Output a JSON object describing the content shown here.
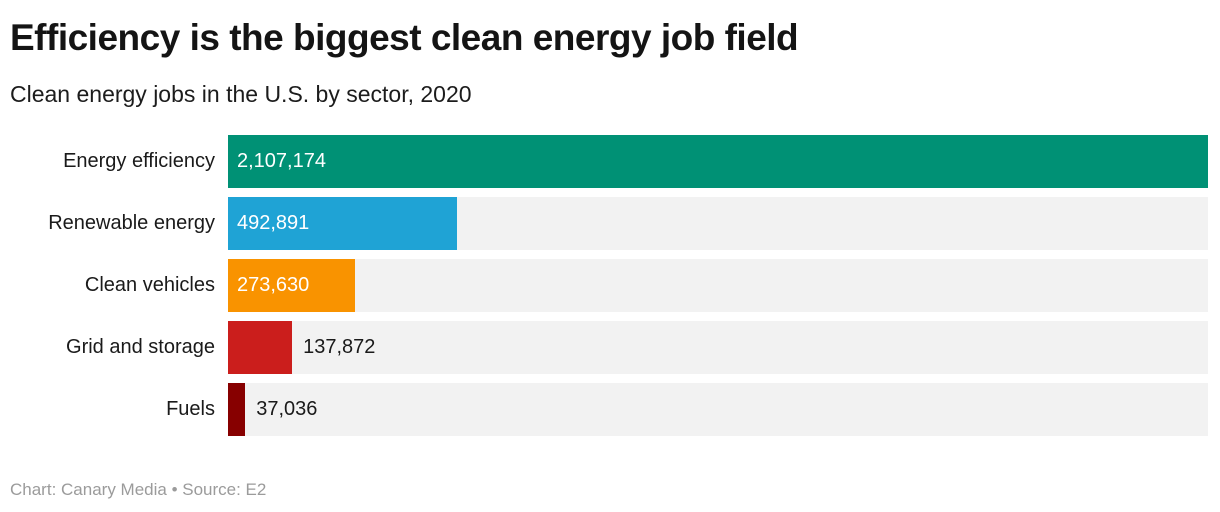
{
  "header": {
    "title": "Efficiency is the biggest clean energy job field",
    "subtitle": "Clean energy jobs in the U.S. by sector, 2020"
  },
  "footer": {
    "attribution": "Chart: Canary Media • Source: E2"
  },
  "colors": {
    "track": "#f2f2f2",
    "title_text": "#141414",
    "label_text": "#1a1a1a",
    "value_text_inside": "#ffffff",
    "value_text_outside": "#1a1a1a",
    "footer_text": "#9b9b9b",
    "background": "#ffffff"
  },
  "chart_data": {
    "type": "bar",
    "orientation": "horizontal",
    "title": "Efficiency is the biggest clean energy job field",
    "subtitle": "Clean energy jobs in the U.S. by sector, 2020",
    "categories": [
      "Energy efficiency",
      "Renewable energy",
      "Clean vehicles",
      "Grid and storage",
      "Fuels"
    ],
    "values": [
      2107174,
      492891,
      273630,
      137872,
      37036
    ],
    "value_labels": [
      "2,107,174",
      "492,891",
      "273,630",
      "137,872",
      "37,036"
    ],
    "bar_colors": [
      "#009175",
      "#1fa3d5",
      "#f99300",
      "#cb1e1c",
      "#870000"
    ],
    "xlim": [
      0,
      2107174
    ],
    "grid": false,
    "legend": false,
    "value_label_placement": [
      "inside",
      "inside",
      "inside",
      "outside",
      "outside"
    ]
  }
}
